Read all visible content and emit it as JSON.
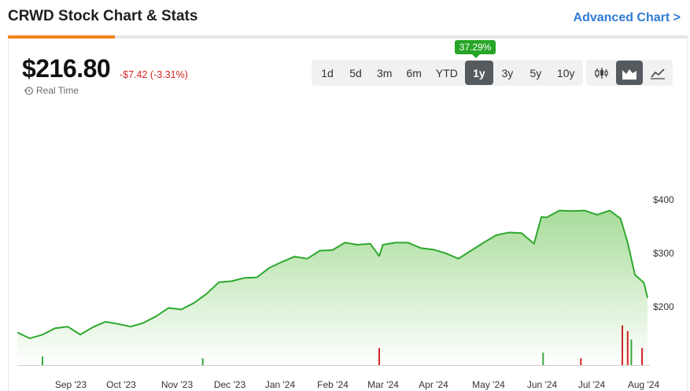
{
  "header": {
    "title": "CRWD Stock Chart & Stats",
    "advanced_link": "Advanced Chart >"
  },
  "quote": {
    "price": "$216.80",
    "change": "-$7.42 (-3.31%)",
    "realtime_label": "Real Time"
  },
  "ranges": [
    "1d",
    "5d",
    "3m",
    "6m",
    "YTD",
    "1y",
    "3y",
    "5y",
    "10y"
  ],
  "active_range": "1y",
  "range_return_badge": "37.29%",
  "chart_types": [
    {
      "icon": "candlestick-chart-icon",
      "active": false
    },
    {
      "icon": "mountain-chart-icon",
      "active": true
    },
    {
      "icon": "line-chart-icon",
      "active": false
    }
  ],
  "colors": {
    "line": "#2ea82e",
    "area_top": "#a8dc9a",
    "area_bottom": "#ffffff",
    "volume_up": "#3aa83a",
    "volume_down": "#d02424",
    "accent": "#f2841c",
    "link": "#2f7bd6"
  },
  "chart_data": {
    "type": "area",
    "title": "",
    "xlabel": "",
    "ylabel": "",
    "ylim": [
      95,
      445
    ],
    "y_ticks": [
      "$400",
      "$300",
      "$200"
    ],
    "x_ticks": [
      "Sep '23",
      "Oct '23",
      "Nov '23",
      "Dec '23",
      "Jan '24",
      "Feb '24",
      "Mar '24",
      "Apr '24",
      "May '24",
      "Jun '24",
      "Jul '24",
      "Aug '24"
    ],
    "grid": false,
    "legend": "none",
    "series": [
      {
        "x": [
          "2023-08-18",
          "2023-08-25",
          "2023-09-01",
          "2023-09-08",
          "2023-09-15",
          "2023-09-22",
          "2023-09-29",
          "2023-10-06",
          "2023-10-13",
          "2023-10-20",
          "2023-10-27",
          "2023-11-03",
          "2023-11-10",
          "2023-11-17",
          "2023-11-24",
          "2023-12-01",
          "2023-12-08",
          "2023-12-15",
          "2023-12-22",
          "2023-12-29",
          "2024-01-05",
          "2024-01-12",
          "2024-01-19",
          "2024-01-26",
          "2024-02-02",
          "2024-02-09",
          "2024-02-16",
          "2024-02-23",
          "2024-03-01",
          "2024-03-06",
          "2024-03-08",
          "2024-03-15",
          "2024-03-22",
          "2024-03-29",
          "2024-04-05",
          "2024-04-12",
          "2024-04-19",
          "2024-04-26",
          "2024-05-03",
          "2024-05-10",
          "2024-05-17",
          "2024-05-24",
          "2024-05-31",
          "2024-06-04",
          "2024-06-07",
          "2024-06-14",
          "2024-06-21",
          "2024-06-28",
          "2024-07-05",
          "2024-07-12",
          "2024-07-18",
          "2024-07-22",
          "2024-07-26",
          "2024-07-31",
          "2024-08-02"
        ],
        "y": [
          152,
          141,
          148,
          160,
          163,
          148,
          162,
          172,
          168,
          163,
          170,
          182,
          198,
          195,
          207,
          224,
          246,
          248,
          254,
          255,
          273,
          284,
          294,
          290,
          305,
          306,
          320,
          316,
          318,
          295,
          316,
          320,
          320,
          310,
          307,
          300,
          290,
          305,
          320,
          334,
          339,
          338,
          318,
          368,
          367,
          380,
          379,
          380,
          372,
          380,
          365,
          320,
          260,
          245,
          216.8
        ]
      }
    ],
    "volume": [
      {
        "date": "2023-09-01",
        "value": 15,
        "direction": "up"
      },
      {
        "date": "2023-11-29",
        "value": 12,
        "direction": "up"
      },
      {
        "date": "2024-03-06",
        "value": 30,
        "direction": "down"
      },
      {
        "date": "2024-06-05",
        "value": 22,
        "direction": "up"
      },
      {
        "date": "2024-06-26",
        "value": 12,
        "direction": "down"
      },
      {
        "date": "2024-07-19",
        "value": 70,
        "direction": "down"
      },
      {
        "date": "2024-07-22",
        "value": 60,
        "direction": "down"
      },
      {
        "date": "2024-07-24",
        "value": 45,
        "direction": "up"
      },
      {
        "date": "2024-07-30",
        "value": 30,
        "direction": "down"
      }
    ]
  }
}
